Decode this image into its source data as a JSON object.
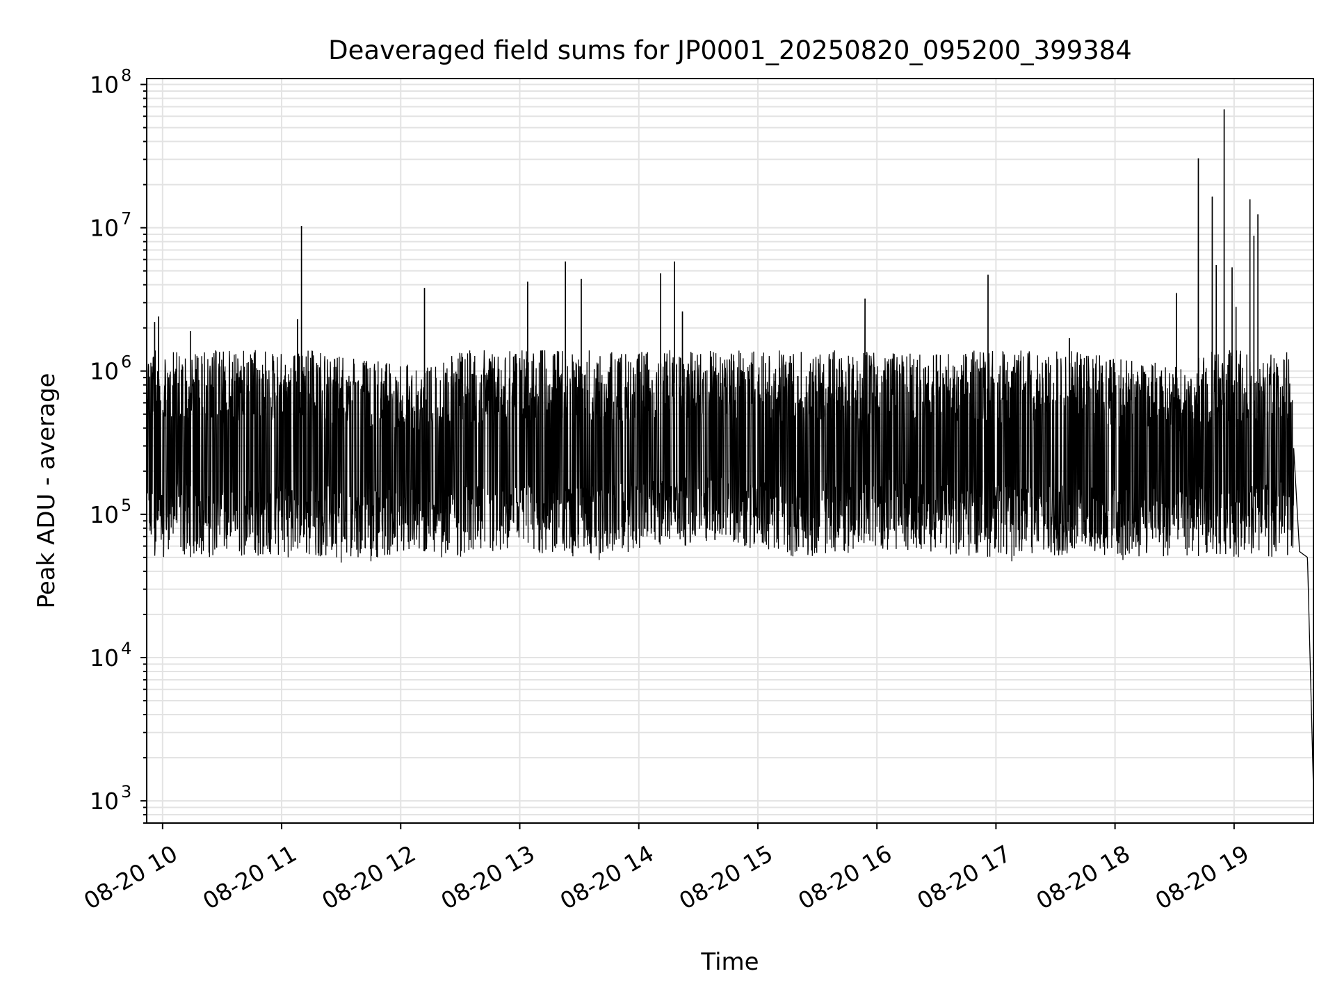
{
  "chart_data": {
    "type": "line",
    "title": "Deaveraged field sums for JP0001_20250820_095200_399384",
    "xlabel": "Time",
    "ylabel": "Peak ADU - average",
    "yscale": "log",
    "ylim": [
      700,
      110000000
    ],
    "xlim": [
      "2025-08-20 09:52",
      "2025-08-20 19:40"
    ],
    "grid": true,
    "line_color": "#000000",
    "grid_color": "#e3e3e3",
    "x_ticks": [
      {
        "time": "2025-08-20 10:00",
        "label": "08-20 10"
      },
      {
        "time": "2025-08-20 11:00",
        "label": "08-20 11"
      },
      {
        "time": "2025-08-20 12:00",
        "label": "08-20 12"
      },
      {
        "time": "2025-08-20 13:00",
        "label": "08-20 13"
      },
      {
        "time": "2025-08-20 14:00",
        "label": "08-20 14"
      },
      {
        "time": "2025-08-20 15:00",
        "label": "08-20 15"
      },
      {
        "time": "2025-08-20 16:00",
        "label": "08-20 16"
      },
      {
        "time": "2025-08-20 17:00",
        "label": "08-20 17"
      },
      {
        "time": "2025-08-20 18:00",
        "label": "08-20 18"
      },
      {
        "time": "2025-08-20 19:00",
        "label": "08-20 19"
      }
    ],
    "y_ticks": [
      {
        "value": 1000,
        "base": "10",
        "exp": "3"
      },
      {
        "value": 10000,
        "base": "10",
        "exp": "4"
      },
      {
        "value": 100000,
        "base": "10",
        "exp": "5"
      },
      {
        "value": 1000000,
        "base": "10",
        "exp": "6"
      },
      {
        "value": 10000000,
        "base": "10",
        "exp": "7"
      },
      {
        "value": 100000000,
        "base": "10",
        "exp": "8"
      }
    ],
    "series": [
      {
        "baseline_profile": [
          [
            "2025-08-20 09:52",
            400000
          ],
          [
            "2025-08-20 10:05",
            900000
          ],
          [
            "2025-08-20 10:20",
            400000
          ],
          [
            "2025-08-20 10:35",
            600000
          ],
          [
            "2025-08-20 10:50",
            150000
          ],
          [
            "2025-08-20 11:10",
            120000
          ],
          [
            "2025-08-20 11:40",
            100000
          ],
          [
            "2025-08-20 12:20",
            90000
          ],
          [
            "2025-08-20 12:50",
            300000
          ],
          [
            "2025-08-20 13:30",
            700000
          ],
          [
            "2025-08-20 14:10",
            800000
          ],
          [
            "2025-08-20 14:40",
            900000
          ],
          [
            "2025-08-20 15:20",
            700000
          ],
          [
            "2025-08-20 16:10",
            800000
          ],
          [
            "2025-08-20 16:50",
            700000
          ],
          [
            "2025-08-20 17:30",
            120000
          ],
          [
            "2025-08-20 18:10",
            100000
          ],
          [
            "2025-08-20 18:40",
            90000
          ],
          [
            "2025-08-20 18:45",
            250000
          ],
          [
            "2025-08-20 19:00",
            400000
          ],
          [
            "2025-08-20 19:20",
            600000
          ],
          [
            "2025-08-20 19:25",
            1000000
          ],
          [
            "2025-08-20 19:30",
            300000
          ],
          [
            "2025-08-20 19:33",
            55000
          ],
          [
            "2025-08-20 19:37",
            50000
          ],
          [
            "2025-08-20 19:40",
            1200
          ]
        ],
        "range_low": 50000,
        "range_high": 1400000,
        "spikes": [
          {
            "time": "2025-08-20 09:56",
            "value": 2200000
          },
          {
            "time": "2025-08-20 09:58",
            "value": 2400000
          },
          {
            "time": "2025-08-20 10:14",
            "value": 1900000
          },
          {
            "time": "2025-08-20 11:08",
            "value": 2300000
          },
          {
            "time": "2025-08-20 11:10",
            "value": 10300000
          },
          {
            "time": "2025-08-20 12:12",
            "value": 3800000
          },
          {
            "time": "2025-08-20 13:04",
            "value": 4200000
          },
          {
            "time": "2025-08-20 13:23",
            "value": 5800000
          },
          {
            "time": "2025-08-20 13:31",
            "value": 4400000
          },
          {
            "time": "2025-08-20 14:11",
            "value": 4800000
          },
          {
            "time": "2025-08-20 14:18",
            "value": 5800000
          },
          {
            "time": "2025-08-20 14:22",
            "value": 2600000
          },
          {
            "time": "2025-08-20 15:54",
            "value": 3200000
          },
          {
            "time": "2025-08-20 16:56",
            "value": 4700000
          },
          {
            "time": "2025-08-20 17:37",
            "value": 1700000
          },
          {
            "time": "2025-08-20 18:31",
            "value": 3500000
          },
          {
            "time": "2025-08-20 18:42",
            "value": 30500000
          },
          {
            "time": "2025-08-20 18:49",
            "value": 16500000
          },
          {
            "time": "2025-08-20 18:51",
            "value": 5500000
          },
          {
            "time": "2025-08-20 18:55",
            "value": 67000000
          },
          {
            "time": "2025-08-20 18:59",
            "value": 5300000
          },
          {
            "time": "2025-08-20 19:01",
            "value": 2800000
          },
          {
            "time": "2025-08-20 19:08",
            "value": 15800000
          },
          {
            "time": "2025-08-20 19:10",
            "value": 8800000
          },
          {
            "time": "2025-08-20 19:12",
            "value": 12400000
          }
        ],
        "dips": [
          {
            "time": "2025-08-20 09:54",
            "value": 330000
          },
          {
            "time": "2025-08-20 10:12",
            "value": 140000
          },
          {
            "time": "2025-08-20 11:30",
            "value": 46000
          },
          {
            "time": "2025-08-20 11:45",
            "value": 47000
          },
          {
            "time": "2025-08-20 13:40",
            "value": 48000
          },
          {
            "time": "2025-08-20 17:08",
            "value": 47000
          },
          {
            "time": "2025-08-20 18:04",
            "value": 48000
          },
          {
            "time": "2025-08-20 19:00",
            "value": 60000
          }
        ]
      }
    ]
  }
}
